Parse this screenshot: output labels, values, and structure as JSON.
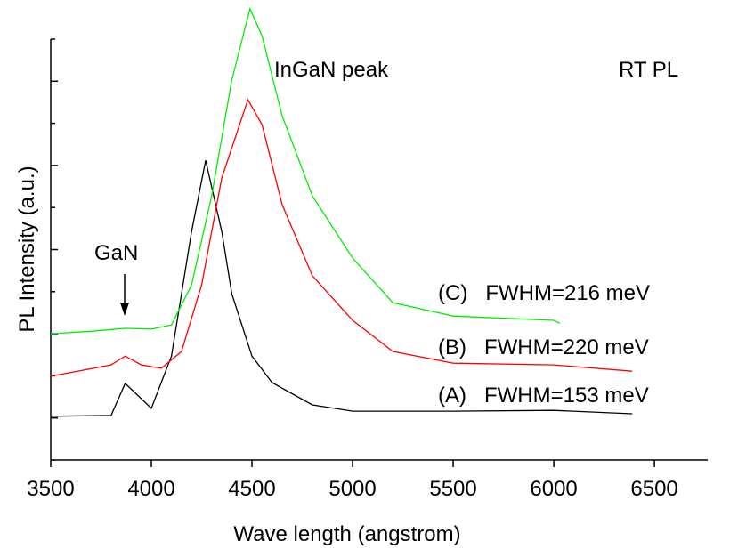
{
  "chart_data": {
    "type": "line",
    "xlabel": "Wave length (angstrom)",
    "ylabel": "PL Intensity (a.u.)",
    "xlim": [
      3500,
      6765
    ],
    "xticks": [
      3500,
      4000,
      4500,
      5000,
      5500,
      6000,
      6500
    ],
    "ylim": [
      0,
      10
    ],
    "yticks": [
      0,
      1,
      2,
      3,
      4,
      5,
      6,
      7,
      8,
      9,
      10
    ],
    "ytick_labels": false,
    "annotations": [
      "InGaN peak",
      "RT PL",
      "GaN"
    ],
    "series": [
      {
        "name": "(A)   FWHM=153 meV",
        "color": "#000000",
        "x": [
          3500,
          3800,
          3870,
          4000,
          4100,
          4200,
          4270,
          4350,
          4400,
          4500,
          4600,
          4800,
          5000,
          5500,
          6000,
          6390
        ],
        "values": [
          1.04,
          1.06,
          1.82,
          1.23,
          2.47,
          5.43,
          7.12,
          5.43,
          3.95,
          2.47,
          1.84,
          1.31,
          1.16,
          1.16,
          1.18,
          1.1
        ]
      },
      {
        "name": "(B)   FWHM=220 meV",
        "color": "#ff0000",
        "x": [
          3500,
          3800,
          3870,
          3950,
          4050,
          4150,
          4250,
          4350,
          4480,
          4550,
          4650,
          4800,
          5000,
          5200,
          5500,
          6000,
          6390
        ],
        "values": [
          1.99,
          2.26,
          2.47,
          2.26,
          2.18,
          2.58,
          4.16,
          6.7,
          8.56,
          7.97,
          6.07,
          4.38,
          3.32,
          2.58,
          2.3,
          2.26,
          2.11
        ]
      },
      {
        "name": "(C)   FWHM=216 meV",
        "color": "#00ee00",
        "x": [
          3500,
          3700,
          3870,
          4000,
          4100,
          4200,
          4300,
          4400,
          4490,
          4550,
          4650,
          4800,
          5000,
          5200,
          5500,
          6000,
          6030
        ],
        "values": [
          3.0,
          3.06,
          3.13,
          3.11,
          3.21,
          4.16,
          6.28,
          9.03,
          10.72,
          10.08,
          8.18,
          6.28,
          4.8,
          3.74,
          3.42,
          3.32,
          3.25
        ]
      }
    ]
  }
}
